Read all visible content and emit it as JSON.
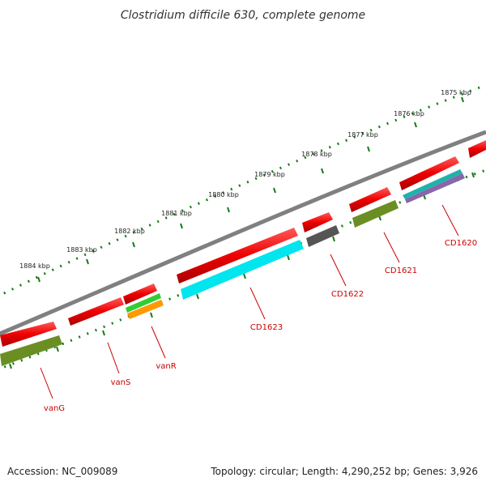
{
  "title": "Clostridium difficile 630, complete genome",
  "footer": {
    "accession": "Accession: NC_009089",
    "topology": "Topology: circular; Length: 4,290,252 bp; Genes: 3,926"
  },
  "ruler_ticks": [
    "1875 kbp",
    "1876 kbp",
    "1877 kbp",
    "1878 kbp",
    "1879 kbp",
    "1880 kbp",
    "1881 kbp",
    "1882 kbp",
    "1883 kbp",
    "1884 kbp"
  ],
  "genes": [
    {
      "name": "CD1620"
    },
    {
      "name": "CD1621"
    },
    {
      "name": "CD1622"
    },
    {
      "name": "CD1623"
    },
    {
      "name": "vanR"
    },
    {
      "name": "vanS"
    },
    {
      "name": "vanG"
    }
  ],
  "colors": {
    "cds": "#ee0000",
    "backbone": "#808080",
    "ruler": "#1a7a1a",
    "label": "#cc0000",
    "olive": "#6b8e23",
    "cyan": "#00e5ee",
    "gray_feature": "#555555",
    "green_feature": "#33cc33",
    "orange_feature": "#ff9900",
    "teal_feature": "#20b2aa",
    "purple_feature": "#8866aa"
  }
}
